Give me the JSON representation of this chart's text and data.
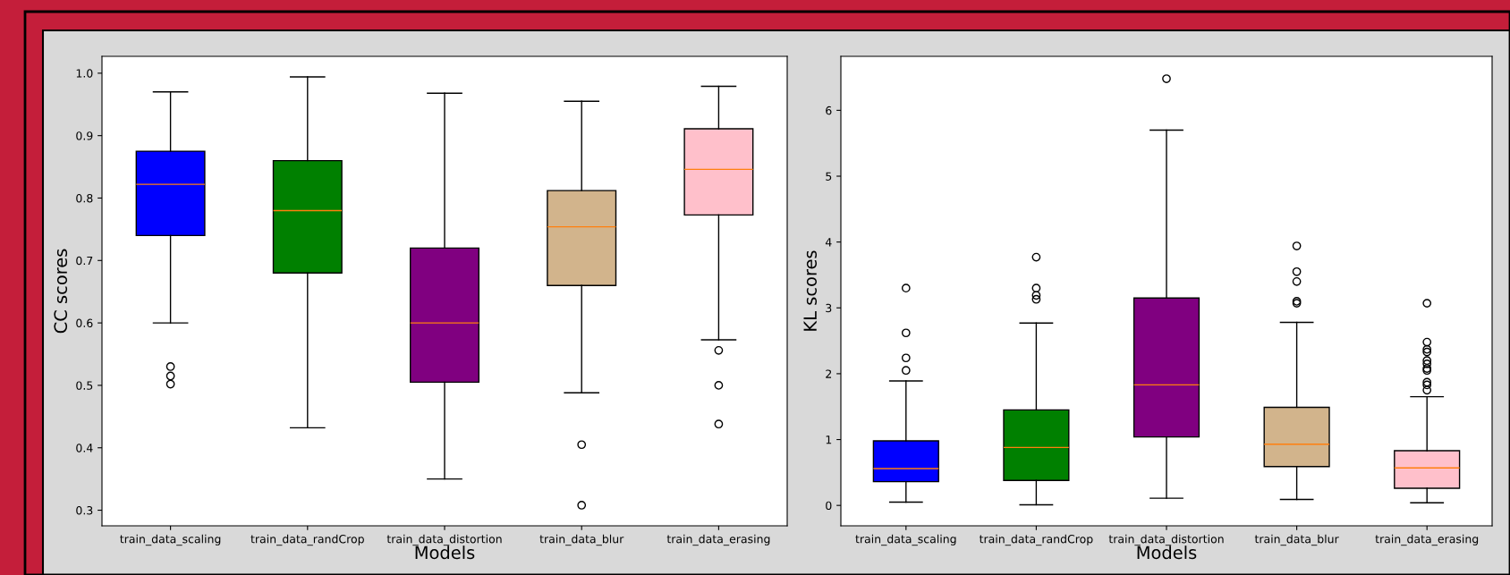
{
  "chart_data": [
    {
      "type": "box",
      "xlabel": "Models",
      "ylabel": "CC scores",
      "categories": [
        "train_data_scaling",
        "train_data_randCrop",
        "train_data_distortion",
        "train_data_blur",
        "train_data_erasing"
      ],
      "colors": [
        "#0000ff",
        "#008000",
        "#800080",
        "#d2b48c",
        "#ffc0cb"
      ],
      "boxes": [
        {
          "low": 0.6,
          "q1": 0.74,
          "median": 0.822,
          "q3": 0.875,
          "high": 0.97,
          "outliers": [
            0.53,
            0.515,
            0.502
          ]
        },
        {
          "low": 0.432,
          "q1": 0.68,
          "median": 0.78,
          "q3": 0.86,
          "high": 0.994
        },
        {
          "low": 0.35,
          "q1": 0.505,
          "median": 0.6,
          "q3": 0.72,
          "high": 0.968
        },
        {
          "low": 0.488,
          "q1": 0.66,
          "median": 0.754,
          "q3": 0.812,
          "high": 0.955,
          "outliers": [
            0.405,
            0.308
          ]
        },
        {
          "low": 0.573,
          "q1": 0.773,
          "median": 0.846,
          "q3": 0.911,
          "high": 0.979,
          "outliers": [
            0.556,
            0.5,
            0.438
          ]
        }
      ],
      "ylim": [
        0.275,
        1.027
      ],
      "yticks": [
        {
          "value": 0.3,
          "label": "0.3"
        },
        {
          "value": 0.4,
          "label": "0.4"
        },
        {
          "value": 0.5,
          "label": "0.5"
        },
        {
          "value": 0.6,
          "label": "0.6"
        },
        {
          "value": 0.7,
          "label": "0.7"
        },
        {
          "value": 0.8,
          "label": "0.8"
        },
        {
          "value": 0.9,
          "label": "0.9"
        },
        {
          "value": 1.0,
          "label": "1.0"
        }
      ]
    },
    {
      "type": "box",
      "xlabel": "Models",
      "ylabel": "KL scores",
      "categories": [
        "train_data_scaling",
        "train_data_randCrop",
        "train_data_distortion",
        "train_data_blur",
        "train_data_erasing"
      ],
      "colors": [
        "#0000ff",
        "#008000",
        "#800080",
        "#d2b48c",
        "#ffc0cb"
      ],
      "boxes": [
        {
          "low": 0.05,
          "q1": 0.36,
          "median": 0.56,
          "q3": 0.98,
          "high": 1.89,
          "outliers": [
            2.05,
            2.24,
            2.62,
            3.3
          ]
        },
        {
          "low": 0.01,
          "q1": 0.38,
          "median": 0.88,
          "q3": 1.45,
          "high": 2.77,
          "outliers": [
            3.13,
            3.19,
            3.3,
            3.77
          ]
        },
        {
          "low": 0.11,
          "q1": 1.04,
          "median": 1.83,
          "q3": 3.15,
          "high": 5.7,
          "outliers": [
            6.48
          ]
        },
        {
          "low": 0.09,
          "q1": 0.59,
          "median": 0.93,
          "q3": 1.49,
          "high": 2.78,
          "outliers": [
            3.07,
            3.1,
            3.4,
            3.55,
            3.94
          ]
        },
        {
          "low": 0.04,
          "q1": 0.26,
          "median": 0.57,
          "q3": 0.83,
          "high": 1.65,
          "outliers": [
            1.75,
            1.83,
            1.87,
            2.05,
            2.08,
            2.15,
            2.2,
            2.33,
            2.37,
            2.48,
            3.07
          ]
        }
      ],
      "ylim": [
        -0.31,
        6.82
      ],
      "yticks": [
        0,
        1,
        2,
        3,
        4,
        5,
        6
      ]
    }
  ]
}
